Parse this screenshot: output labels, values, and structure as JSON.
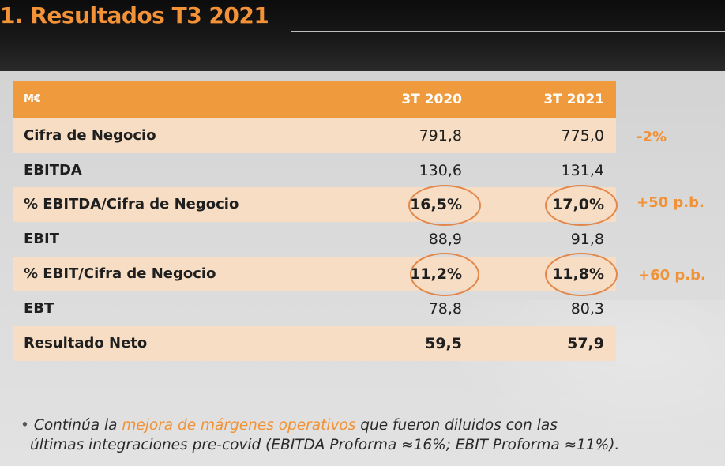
{
  "header": {
    "title": "1. Resultados T3 2021"
  },
  "table": {
    "columns": [
      "M€",
      "3T 2020",
      "3T 2021"
    ],
    "rows": [
      {
        "label": "Cifra de Negocio",
        "v2020": "791,8",
        "v2021": "775,0",
        "delta": "-2%"
      },
      {
        "label": "EBITDA",
        "v2020": "130,6",
        "v2021": "131,4",
        "delta": ""
      },
      {
        "label": "% EBITDA/Cifra de Negocio",
        "v2020": "16,5%",
        "v2021": "17,0%",
        "delta": "+50 p.b."
      },
      {
        "label": "EBIT",
        "v2020": "88,9",
        "v2021": "91,8",
        "delta": ""
      },
      {
        "label": "% EBIT/Cifra de Negocio",
        "v2020": "11,2%",
        "v2021": "11,8%",
        "delta": "+60 p.b."
      },
      {
        "label": "EBT",
        "v2020": "78,8",
        "v2021": "80,3",
        "delta": ""
      },
      {
        "label": "Resultado Neto",
        "v2020": "59,5",
        "v2021": "57,9",
        "delta": ""
      }
    ]
  },
  "note": {
    "prefix": "Continúa la ",
    "highlight": "mejora de márgenes operativos",
    "suffix": " que fueron diluidos con las",
    "line2": "últimas integraciones pre-covid (EBITDA Proforma ≈16%; EBIT Proforma ≈11%)."
  },
  "colors": {
    "accent": "#f09a3e",
    "row_shade": "#f6ddc4",
    "text": "#1f1f1f"
  }
}
